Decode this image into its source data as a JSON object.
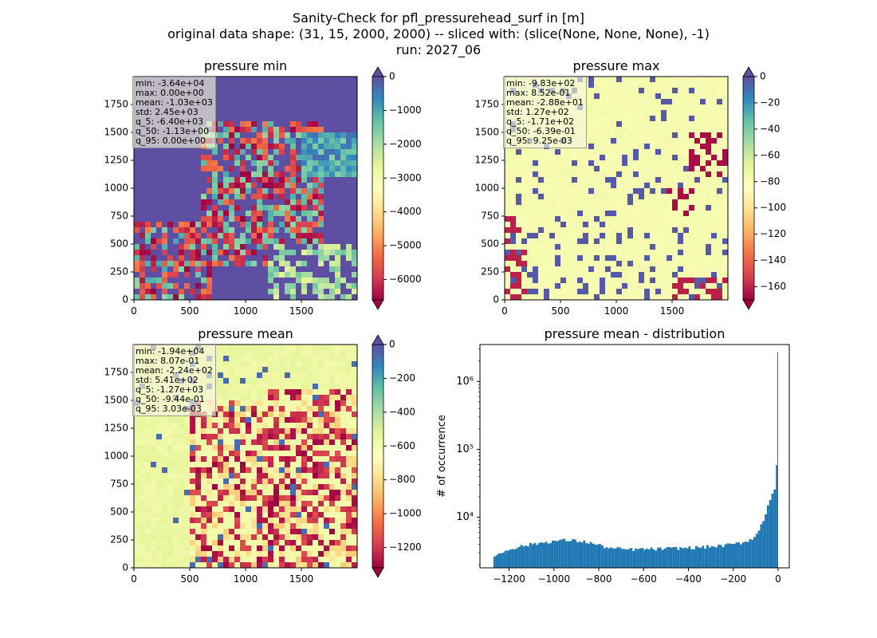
{
  "figure": {
    "title_lines": [
      "Sanity-Check for pfl_pressurehead_surf in [m]",
      "original data shape: (31, 15, 2000, 2000) -- sliced with: (slice(None, None, None), -1)",
      "run: 2027_06"
    ]
  },
  "colors": {
    "spectral": [
      "#9e0142",
      "#d53e4f",
      "#f46d43",
      "#fdae61",
      "#fee08b",
      "#ffffbf",
      "#e6f598",
      "#abdda4",
      "#66c2a5",
      "#3288bd",
      "#5e4fa2"
    ],
    "hist_bar": "#1f77b4",
    "stats_box_bg": "rgba(245,245,220,0.65)"
  },
  "panels": [
    {
      "title": "pressure min",
      "xticks": [
        "0",
        "500",
        "1000",
        "1500"
      ],
      "yticks": [
        "0",
        "250",
        "500",
        "750",
        "1000",
        "1250",
        "1500",
        "1750"
      ],
      "colorbar": {
        "min": -6600,
        "max": 0,
        "ticks": [
          "0",
          "−1000",
          "−2000",
          "−3000",
          "−4000",
          "−5000",
          "−6000"
        ],
        "tick_values": [
          0,
          -1000,
          -2000,
          -3000,
          -4000,
          -5000,
          -6000
        ],
        "extend": "both"
      },
      "stats": [
        "min: -3.64e+04",
        "max: 0.00e+00",
        "mean: -1.03e+03",
        "std: 2.45e+03",
        "q_5: -6.40e+03",
        "q_50: -1.13e+00",
        "q_95: 0.00e+00"
      ]
    },
    {
      "title": "pressure max",
      "xticks": [
        "0",
        "500",
        "1000",
        "1500"
      ],
      "yticks": [
        "0",
        "250",
        "500",
        "750",
        "1000",
        "1250",
        "1500",
        "1750"
      ],
      "colorbar": {
        "min": -170,
        "max": 0,
        "ticks": [
          "0",
          "−20",
          "−40",
          "−60",
          "−80",
          "−100",
          "−120",
          "−140",
          "−160"
        ],
        "tick_values": [
          0,
          -20,
          -40,
          -60,
          -80,
          -100,
          -120,
          -140,
          -160
        ],
        "extend": "both"
      },
      "stats": [
        "min: -9.83e+02",
        "max: 8.52e-01",
        "mean: -2.88e+01",
        "std: 1.27e+02",
        "q_5: -1.71e+02",
        "q_50: -6.39e-01",
        "q_95: 9.25e-03"
      ]
    },
    {
      "title": "pressure mean",
      "xticks": [
        "0",
        "500",
        "1000",
        "1500"
      ],
      "yticks": [
        "0",
        "250",
        "500",
        "750",
        "1000",
        "1250",
        "1500",
        "1750"
      ],
      "colorbar": {
        "min": -1320,
        "max": 0,
        "ticks": [
          "0",
          "−200",
          "−400",
          "−600",
          "−800",
          "−1000",
          "−1200"
        ],
        "tick_values": [
          0,
          -200,
          -400,
          -600,
          -800,
          -1000,
          -1200
        ],
        "extend": "both"
      },
      "stats": [
        "min: -1.94e+04",
        "max: 8.07e-01",
        "mean: -2.24e+02",
        "std: 5.41e+02",
        "q_5: -1.27e+03",
        "q_50: -9.44e-01",
        "q_95: 3.03e-03"
      ]
    }
  ],
  "histogram": {
    "title": "pressure mean - distribution",
    "ylabel": "# of occurrence",
    "xticks": [
      "−1200",
      "−1000",
      "−800",
      "−600",
      "−400",
      "−200",
      "0"
    ],
    "xtick_values": [
      -1200,
      -1000,
      -800,
      -600,
      -400,
      -200,
      0
    ],
    "yticks": [
      "10⁴",
      "10⁵",
      "10⁶"
    ],
    "ytick_exponents": [
      4,
      5,
      6
    ]
  },
  "chart_data": [
    {
      "type": "heatmap",
      "title": "pressure min",
      "xlim": [
        0,
        2000
      ],
      "ylim": [
        0,
        2000
      ],
      "colormap": "Spectral",
      "vmin": -6600,
      "vmax": 0
    },
    {
      "type": "heatmap",
      "title": "pressure max",
      "xlim": [
        0,
        2000
      ],
      "ylim": [
        0,
        2000
      ],
      "colormap": "Spectral",
      "vmin": -170,
      "vmax": 0
    },
    {
      "type": "heatmap",
      "title": "pressure mean",
      "xlim": [
        0,
        2000
      ],
      "ylim": [
        0,
        2000
      ],
      "colormap": "Spectral",
      "vmin": -1320,
      "vmax": 0
    },
    {
      "type": "bar",
      "title": "pressure mean - distribution",
      "xlabel": "",
      "ylabel": "# of occurrence",
      "yscale": "log",
      "xlim": [
        -1330,
        50
      ],
      "ylim": [
        1800,
        3500000
      ],
      "x": [
        -1260,
        -1200,
        -1150,
        -1100,
        -1050,
        -1000,
        -950,
        -900,
        -850,
        -800,
        -750,
        -700,
        -650,
        -600,
        -550,
        -500,
        -450,
        -400,
        -350,
        -300,
        -250,
        -200,
        -150,
        -100,
        -80,
        -60,
        -40,
        -20,
        -10,
        -5,
        0
      ],
      "values": [
        2700,
        3400,
        3700,
        4000,
        4250,
        4450,
        4600,
        4500,
        4300,
        3900,
        3500,
        3400,
        3350,
        3400,
        3400,
        3450,
        3500,
        3550,
        3600,
        3700,
        3800,
        4000,
        4300,
        5200,
        7000,
        10000,
        17000,
        25000,
        27000,
        60000,
        2700000
      ]
    }
  ]
}
